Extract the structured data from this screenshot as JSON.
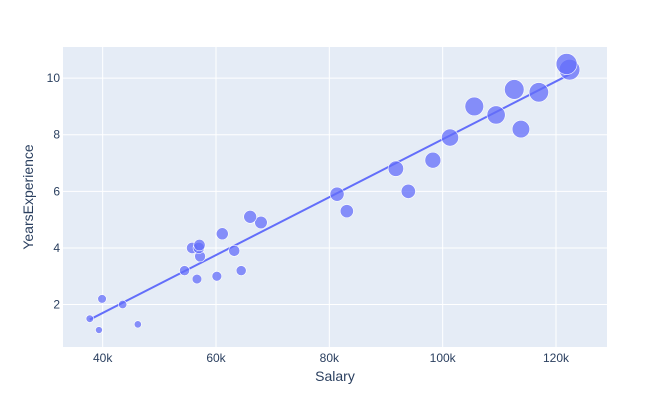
{
  "chart_data": {
    "type": "scatter",
    "xlabel": "Salary",
    "ylabel": "YearsExperience",
    "xlim": [
      33000,
      129000
    ],
    "ylim": [
      0.5,
      11.1
    ],
    "grid": true,
    "x_ticks": [
      {
        "value": 40000,
        "label": "40k"
      },
      {
        "value": 60000,
        "label": "60k"
      },
      {
        "value": 80000,
        "label": "80k"
      },
      {
        "value": 100000,
        "label": "100k"
      },
      {
        "value": 120000,
        "label": "120k"
      }
    ],
    "y_ticks": [
      {
        "value": 2,
        "label": "2"
      },
      {
        "value": 4,
        "label": "4"
      },
      {
        "value": 6,
        "label": "6"
      },
      {
        "value": 8,
        "label": "8"
      },
      {
        "value": 10,
        "label": "10"
      }
    ],
    "marker_color": "#636efa",
    "points": [
      {
        "x": 39343,
        "y": 1.1
      },
      {
        "x": 46205,
        "y": 1.3
      },
      {
        "x": 37731,
        "y": 1.5
      },
      {
        "x": 43525,
        "y": 2.0
      },
      {
        "x": 39891,
        "y": 2.2
      },
      {
        "x": 56642,
        "y": 2.9
      },
      {
        "x": 60150,
        "y": 3.0
      },
      {
        "x": 54445,
        "y": 3.2
      },
      {
        "x": 64445,
        "y": 3.2
      },
      {
        "x": 57189,
        "y": 3.7
      },
      {
        "x": 63218,
        "y": 3.9
      },
      {
        "x": 55794,
        "y": 4.0
      },
      {
        "x": 56957,
        "y": 4.0
      },
      {
        "x": 57081,
        "y": 4.1
      },
      {
        "x": 61111,
        "y": 4.5
      },
      {
        "x": 67938,
        "y": 4.9
      },
      {
        "x": 66029,
        "y": 5.1
      },
      {
        "x": 83088,
        "y": 5.3
      },
      {
        "x": 81363,
        "y": 5.9
      },
      {
        "x": 93940,
        "y": 6.0
      },
      {
        "x": 91738,
        "y": 6.8
      },
      {
        "x": 98273,
        "y": 7.1
      },
      {
        "x": 101302,
        "y": 7.9
      },
      {
        "x": 113812,
        "y": 8.2
      },
      {
        "x": 109431,
        "y": 8.7
      },
      {
        "x": 105582,
        "y": 9.0
      },
      {
        "x": 116969,
        "y": 9.5
      },
      {
        "x": 112635,
        "y": 9.6
      },
      {
        "x": 122391,
        "y": 10.3
      },
      {
        "x": 121872,
        "y": 10.5
      }
    ],
    "trendline": {
      "x": [
        37731,
        122391
      ],
      "y": [
        1.47,
        10.13
      ]
    }
  }
}
